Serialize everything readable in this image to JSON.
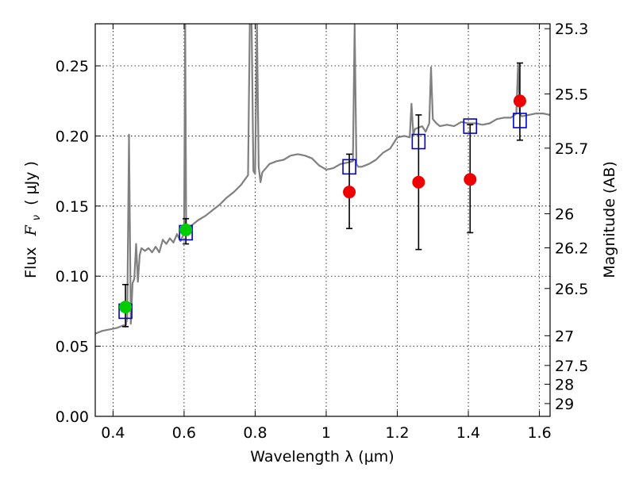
{
  "chart_data": {
    "type": "scatter",
    "title": "",
    "xlabel": "Wavelength  λ (μm)",
    "ylabel": "Flux  F_ν  ( μJy )",
    "ylabel_parts": {
      "word": "Flux",
      "symbol": "F",
      "sub": "ν",
      "unit": "( μJy )"
    },
    "y2label": "Magnitude (AB)",
    "xlim": [
      0.35,
      1.63
    ],
    "ylim": [
      0.0,
      0.28
    ],
    "grid": true,
    "x_ticks": [
      0.4,
      0.6,
      0.8,
      1.0,
      1.2,
      1.4,
      1.6
    ],
    "x_tick_labels": [
      "0.4",
      "0.6",
      "0.8",
      "1",
      "1.2",
      "1.4",
      "1.6"
    ],
    "y_ticks": [
      0.0,
      0.05,
      0.1,
      0.15,
      0.2,
      0.25
    ],
    "y_tick_labels": [
      "0.00",
      "0.05",
      "0.10",
      "0.15",
      "0.20",
      "0.25"
    ],
    "y2_ticks": [
      {
        "label": "25.3",
        "flux": 0.2765
      },
      {
        "label": "25.5",
        "flux": 0.23
      },
      {
        "label": "25.7",
        "flux": 0.1913
      },
      {
        "label": "26",
        "flux": 0.1445
      },
      {
        "label": "26.2",
        "flux": 0.1202
      },
      {
        "label": "26.5",
        "flux": 0.0912
      },
      {
        "label": "27",
        "flux": 0.0575
      },
      {
        "label": "27.5",
        "flux": 0.0363
      },
      {
        "label": "28",
        "flux": 0.0229
      },
      {
        "label": "29",
        "flux": 0.0091
      }
    ],
    "series": [
      {
        "kind": "line",
        "color": "#808080",
        "x": [
          0.35,
          0.37,
          0.39,
          0.41,
          0.42,
          0.43,
          0.435,
          0.44,
          0.445,
          0.45,
          0.455,
          0.46,
          0.465,
          0.47,
          0.475,
          0.48,
          0.49,
          0.5,
          0.51,
          0.52,
          0.53,
          0.54,
          0.55,
          0.56,
          0.57,
          0.58,
          0.59,
          0.595,
          0.6,
          0.603,
          0.606,
          0.61,
          0.62,
          0.64,
          0.66,
          0.68,
          0.7,
          0.72,
          0.74,
          0.76,
          0.78,
          0.785,
          0.79,
          0.795,
          0.8,
          0.805,
          0.81,
          0.815,
          0.82,
          0.84,
          0.86,
          0.88,
          0.9,
          0.92,
          0.94,
          0.96,
          0.98,
          1.0,
          1.02,
          1.04,
          1.06,
          1.075,
          1.08,
          1.085,
          1.09,
          1.1,
          1.12,
          1.14,
          1.16,
          1.18,
          1.2,
          1.22,
          1.235,
          1.24,
          1.245,
          1.25,
          1.27,
          1.28,
          1.29,
          1.295,
          1.3,
          1.31,
          1.32,
          1.34,
          1.36,
          1.38,
          1.4,
          1.42,
          1.44,
          1.46,
          1.48,
          1.5,
          1.52,
          1.535,
          1.54,
          1.545,
          1.55,
          1.57,
          1.59,
          1.61,
          1.63
        ],
        "y": [
          0.059,
          0.061,
          0.062,
          0.063,
          0.064,
          0.065,
          0.064,
          0.07,
          0.201,
          0.066,
          0.095,
          0.098,
          0.123,
          0.096,
          0.115,
          0.12,
          0.118,
          0.12,
          0.117,
          0.121,
          0.117,
          0.126,
          0.123,
          0.127,
          0.124,
          0.13,
          0.125,
          0.128,
          0.13,
          0.28,
          0.13,
          0.132,
          0.136,
          0.14,
          0.143,
          0.147,
          0.151,
          0.156,
          0.16,
          0.165,
          0.172,
          0.28,
          0.28,
          0.175,
          0.173,
          0.28,
          0.178,
          0.167,
          0.174,
          0.18,
          0.182,
          0.183,
          0.186,
          0.187,
          0.186,
          0.184,
          0.179,
          0.176,
          0.177,
          0.18,
          0.181,
          0.182,
          0.28,
          0.18,
          0.178,
          0.178,
          0.18,
          0.183,
          0.188,
          0.191,
          0.199,
          0.2,
          0.199,
          0.223,
          0.201,
          0.205,
          0.207,
          0.203,
          0.209,
          0.249,
          0.212,
          0.209,
          0.207,
          0.208,
          0.207,
          0.21,
          0.209,
          0.209,
          0.208,
          0.209,
          0.212,
          0.213,
          0.213,
          0.216,
          0.251,
          0.216,
          0.214,
          0.215,
          0.216,
          0.216,
          0.215
        ]
      },
      {
        "kind": "open-square",
        "color": "#0000cc",
        "x": [
          0.435,
          0.605,
          1.065,
          1.26,
          1.405,
          1.545
        ],
        "y": [
          0.075,
          0.131,
          0.178,
          0.196,
          0.207,
          0.211
        ]
      },
      {
        "kind": "filled-circle",
        "color": "#00cc00",
        "x": [
          0.435,
          0.605
        ],
        "y": [
          0.078,
          0.133
        ],
        "err_lo": [
          0.064,
          0.123
        ],
        "err_hi": [
          0.094,
          0.141
        ]
      },
      {
        "kind": "filled-circle",
        "color": "#ee0000",
        "x": [
          1.065,
          1.26,
          1.405,
          1.545
        ],
        "y": [
          0.16,
          0.167,
          0.169,
          0.225
        ],
        "err_lo": [
          0.134,
          0.119,
          0.131,
          0.197
        ],
        "err_hi": [
          0.187,
          0.215,
          0.208,
          0.252
        ]
      }
    ]
  }
}
